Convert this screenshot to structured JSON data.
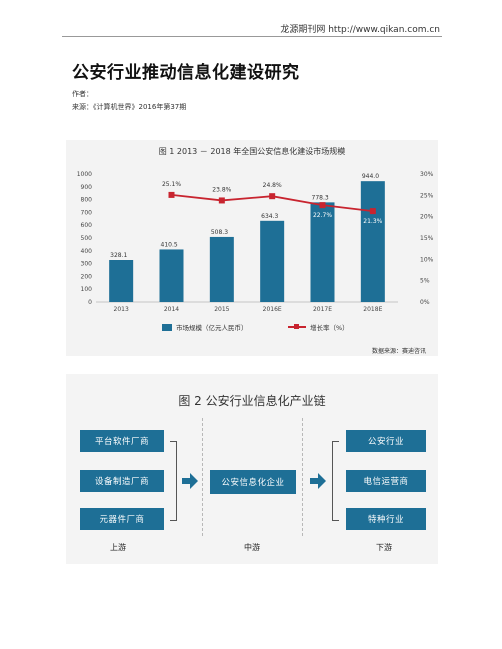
{
  "header": {
    "source": "龙源期刊网 http://www.qikan.com.cn"
  },
  "article": {
    "title": "公安行业推动信息化建设研究",
    "author_label": "作者：",
    "source_line": "来源：《计算机世界》2016年第37期"
  },
  "figure1": {
    "title": "图 1 2013 － 2018 年全国公安信息化建设市场规模",
    "note": "数据来源：赛迪咨讯",
    "colors": {
      "bar": "#1e6f96",
      "line": "#c8242f"
    },
    "chart_data": {
      "type": "bar",
      "categories": [
        "2013",
        "2014",
        "2015",
        "2016E",
        "2017E",
        "2018E"
      ],
      "series": [
        {
          "name": "市场规模（亿元人民币）",
          "type": "bar",
          "values": [
            328.1,
            410.5,
            508.3,
            634.3,
            778.3,
            944.0
          ],
          "labels": [
            "328.1",
            "410.5",
            "508.3",
            "634.3",
            "778.3",
            "944.0"
          ]
        },
        {
          "name": "增长率（%）",
          "type": "line",
          "axis": "right",
          "values": [
            null,
            25.1,
            23.8,
            24.8,
            22.7,
            21.3
          ],
          "labels": [
            "",
            "25.1%",
            "23.8%",
            "24.8%",
            "22.7%",
            "21.3%"
          ]
        }
      ],
      "ylim": [
        0,
        1000
      ],
      "yticks": [
        "0",
        "100",
        "200",
        "300",
        "400",
        "500",
        "600",
        "700",
        "800",
        "900",
        "1000"
      ],
      "y2lim": [
        0,
        30
      ],
      "y2ticks": [
        "0%",
        "5%",
        "10%",
        "15%",
        "20%",
        "25%",
        "30%"
      ],
      "legend_position": "bottom",
      "grid": false
    }
  },
  "figure2": {
    "title": "图 2 公安行业信息化产业链",
    "upstream": {
      "label": "上游",
      "items": [
        "平台软件厂商",
        "设备制造厂商",
        "元器件厂商"
      ]
    },
    "midstream": {
      "label": "中游",
      "items": [
        "公安信息化企业"
      ]
    },
    "downstream": {
      "label": "下游",
      "items": [
        "公安行业",
        "电信运营商",
        "特种行业"
      ]
    },
    "colors": {
      "box": "#1e6f96"
    }
  }
}
